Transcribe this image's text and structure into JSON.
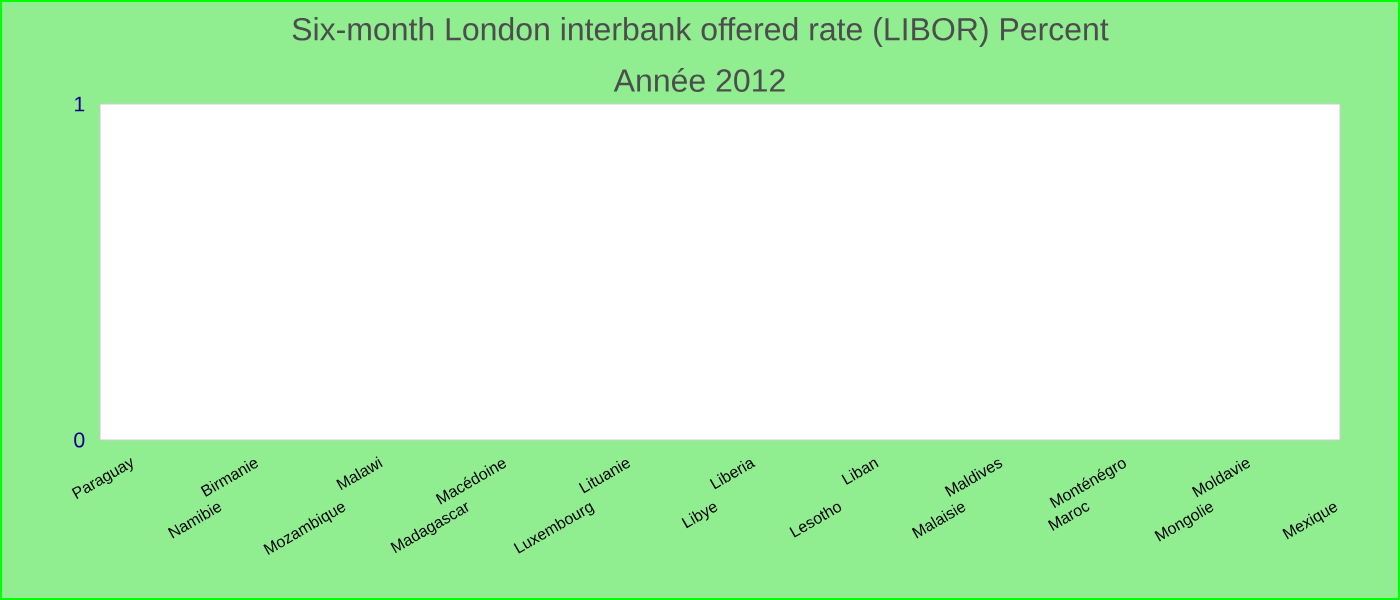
{
  "chart_data": {
    "type": "bar",
    "title": "Six-month London interbank offered rate (LIBOR)  Percent",
    "subtitle": "Année 2012",
    "categories": [
      "Paraguay",
      "Namibie",
      "Birmanie",
      "Mozambique",
      "Malawi",
      "Madagascar",
      "Macédoine",
      "Luxembourg",
      "Lituanie",
      "Libye",
      "Liberia",
      "Lesotho",
      "Liban",
      "Malaisie",
      "Maldives",
      "Maroc",
      "Monténégro",
      "Mongolie",
      "Moldavie",
      "Mexique"
    ],
    "values": [
      null,
      null,
      null,
      null,
      null,
      null,
      null,
      null,
      null,
      null,
      null,
      null,
      null,
      null,
      null,
      null,
      null,
      null,
      null,
      null
    ],
    "ylim": [
      0,
      1
    ],
    "yticks": [
      0,
      1
    ],
    "grid": false
  }
}
